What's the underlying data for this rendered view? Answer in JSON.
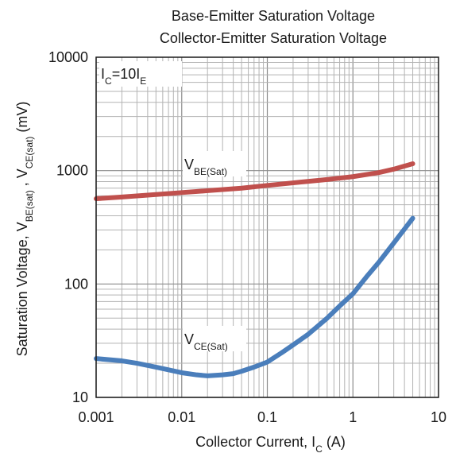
{
  "chart_data": {
    "type": "line",
    "title": [
      "Base-Emitter Saturation Voltage",
      "Collector-Emitter Saturation Voltage"
    ],
    "xlabel": {
      "main": "Collector Current, I",
      "sub": "C",
      "unit": " (A)"
    },
    "ylabel": {
      "parts": [
        {
          "t": "Saturation Voltage,  V"
        },
        {
          "t": "BE(sat)",
          "sub": true
        },
        {
          "t": " ,  V"
        },
        {
          "t": "CE(sat)",
          "sub": true
        },
        {
          "t": " (mV)"
        }
      ]
    },
    "xscale": "log",
    "yscale": "log",
    "xlim": [
      0.001,
      10
    ],
    "ylim": [
      10,
      10000
    ],
    "x_ticks": [
      {
        "value": 0.001,
        "label": "0.001"
      },
      {
        "value": 0.01,
        "label": "0.01"
      },
      {
        "value": 0.1,
        "label": "0.1"
      },
      {
        "value": 1,
        "label": "1"
      },
      {
        "value": 10,
        "label": "10"
      }
    ],
    "y_ticks": [
      {
        "value": 10,
        "label": "10"
      },
      {
        "value": 100,
        "label": "100"
      },
      {
        "value": 1000,
        "label": "1000"
      },
      {
        "value": 10000,
        "label": "10000"
      }
    ],
    "grid": true,
    "condition": {
      "main": "I",
      "sub1": "C",
      "mid": "=10I",
      "sub2": "E"
    },
    "series": [
      {
        "name": "V_BE(Sat)",
        "label_main": "V",
        "label_sub": "BE(Sat)",
        "color": "#c0504d",
        "x": [
          0.001,
          0.002,
          0.005,
          0.01,
          0.02,
          0.05,
          0.1,
          0.2,
          0.5,
          1,
          2,
          3,
          5
        ],
        "y": [
          565,
          585,
          615,
          640,
          665,
          700,
          740,
          780,
          835,
          885,
          960,
          1030,
          1150
        ]
      },
      {
        "name": "V_CE(Sat)",
        "label_main": "V",
        "label_sub": "CE(Sat)",
        "color": "#4a7ebb",
        "x": [
          0.001,
          0.002,
          0.003,
          0.005,
          0.007,
          0.01,
          0.015,
          0.02,
          0.03,
          0.04,
          0.05,
          0.07,
          0.1,
          0.15,
          0.2,
          0.3,
          0.5,
          0.7,
          1,
          1.5,
          2,
          3,
          5
        ],
        "y": [
          22,
          21,
          20,
          18.5,
          17.5,
          16.5,
          15.8,
          15.5,
          15.8,
          16.2,
          17,
          18.5,
          20.5,
          25,
          29,
          36,
          50,
          64,
          82,
          120,
          155,
          230,
          380
        ]
      }
    ]
  }
}
